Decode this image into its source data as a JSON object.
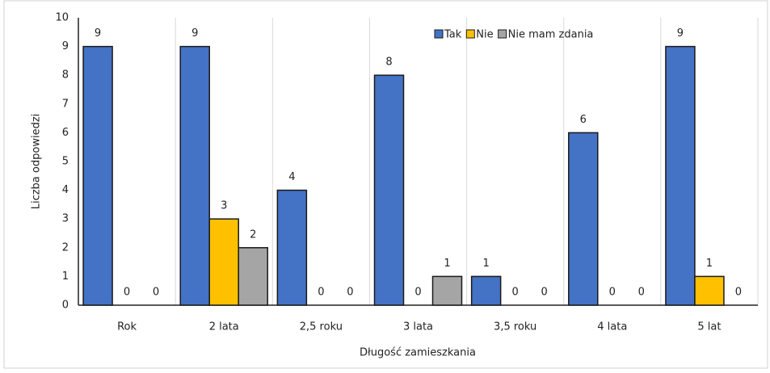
{
  "chart_data": {
    "type": "bar",
    "y_label": "Liczba odpowiedzi",
    "x_label": "Długość zamieszkania",
    "categories": [
      "Rok",
      "2 lata",
      "2,5 roku",
      "3 lata",
      "3,5 roku",
      "4 lata",
      "5 lat"
    ],
    "series": [
      {
        "name": "Tak",
        "color": "#4472c4",
        "values": [
          9,
          9,
          4,
          8,
          1,
          6,
          9
        ]
      },
      {
        "name": "Nie",
        "color": "#ffc000",
        "values": [
          0,
          3,
          0,
          0,
          0,
          0,
          1
        ]
      },
      {
        "name": "Nie mam zdania",
        "color": "#a5a5a5",
        "values": [
          0,
          2,
          0,
          1,
          0,
          0,
          0
        ]
      }
    ],
    "ylim": [
      0,
      10
    ],
    "yticks": [
      0,
      1,
      2,
      3,
      4,
      5,
      6,
      7,
      8,
      9,
      10
    ],
    "legend": "top-right",
    "data_labels": true
  }
}
